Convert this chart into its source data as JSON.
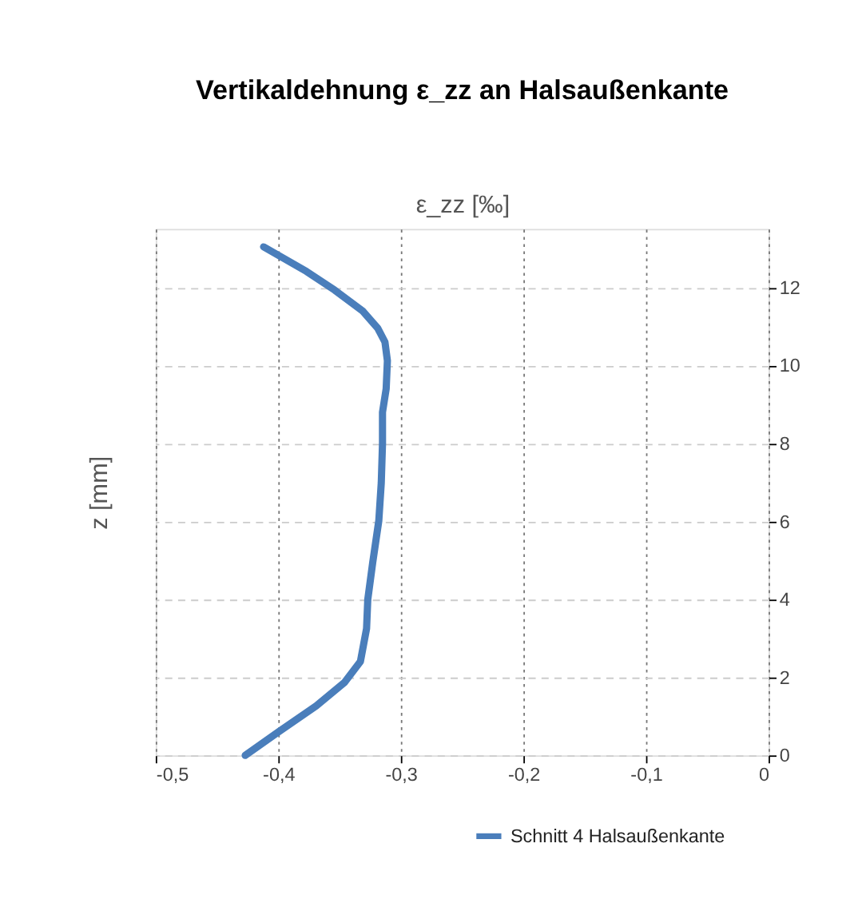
{
  "chart_data": {
    "type": "line",
    "title": "Vertikaldehnung ε_zz an Halsaußenkante",
    "xlabel": "ε_zz [‰]",
    "ylabel": "z [mm]",
    "xlim": [
      -0.5,
      0
    ],
    "xticks": [
      {
        "value": -0.5,
        "label": "-0,5"
      },
      {
        "value": -0.4,
        "label": "-0,4"
      },
      {
        "value": -0.3,
        "label": "-0,3"
      },
      {
        "value": -0.2,
        "label": "-0,2"
      },
      {
        "value": -0.1,
        "label": "-0,1"
      },
      {
        "value": 0,
        "label": "0"
      }
    ],
    "ylim": [
      0,
      13.5
    ],
    "yticks": [
      0,
      2,
      4,
      6,
      8,
      10,
      12
    ],
    "grid": true,
    "legend": "bottom right",
    "line_style": "solid",
    "marker": "none",
    "series": [
      {
        "name": "Schnitt 4 Halsaußenkante",
        "color": "#4a7ebb",
        "x": [
          -0.427,
          -0.4,
          -0.369,
          -0.346,
          -0.333,
          -0.328,
          -0.327,
          -0.323,
          -0.318,
          -0.316,
          -0.315,
          -0.315,
          -0.312,
          -0.311,
          -0.313,
          -0.319,
          -0.331,
          -0.354,
          -0.377,
          -0.412
        ],
        "values": [
          0,
          0.6,
          1.27,
          1.87,
          2.41,
          3.25,
          4.0,
          4.94,
          6.02,
          6.99,
          7.99,
          8.8,
          9.4,
          10.12,
          10.6,
          10.96,
          11.39,
          11.93,
          12.41,
          13.04
        ]
      }
    ]
  }
}
